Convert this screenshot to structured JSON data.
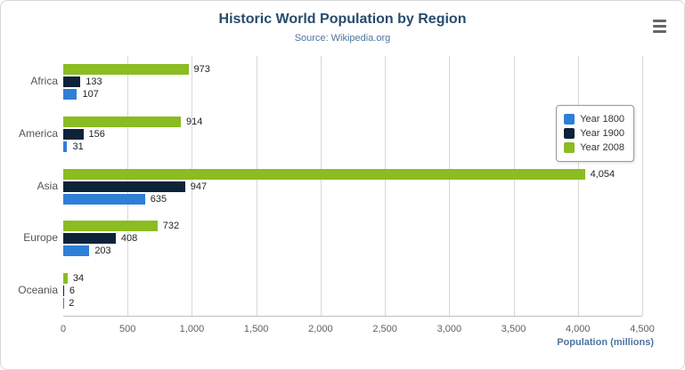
{
  "header": {
    "title": "Historic World Population by Region",
    "subtitle": "Source: Wikipedia.org"
  },
  "menu": {
    "icon": "hamburger-icon"
  },
  "chart_data": {
    "type": "bar",
    "orientation": "horizontal",
    "title": "Historic World Population by Region",
    "subtitle": "Source: Wikipedia.org",
    "categories": [
      "Africa",
      "America",
      "Asia",
      "Europe",
      "Oceania"
    ],
    "series": [
      {
        "name": "Year 1800",
        "color": "#2f7ed8",
        "values": [
          107,
          31,
          635,
          203,
          2
        ]
      },
      {
        "name": "Year 1900",
        "color": "#0d233a",
        "values": [
          133,
          156,
          947,
          408,
          6
        ]
      },
      {
        "name": "Year 2008",
        "color": "#8bbc21",
        "values": [
          973,
          914,
          4054,
          732,
          34
        ]
      }
    ],
    "bar_render_order": [
      "Year 2008",
      "Year 1900",
      "Year 1800"
    ],
    "xlabel": "Population (millions)",
    "ylabel": "",
    "xlim": [
      0,
      4500
    ],
    "tick_interval": 500,
    "tick_labels": [
      "0",
      "500",
      "1,000",
      "1,500",
      "2,000",
      "2,500",
      "3,000",
      "3,500",
      "4,000",
      "4,500"
    ],
    "grid": true,
    "legend": {
      "position": "right",
      "entries": [
        "Year 1800",
        "Year 1900",
        "Year 2008"
      ]
    }
  }
}
